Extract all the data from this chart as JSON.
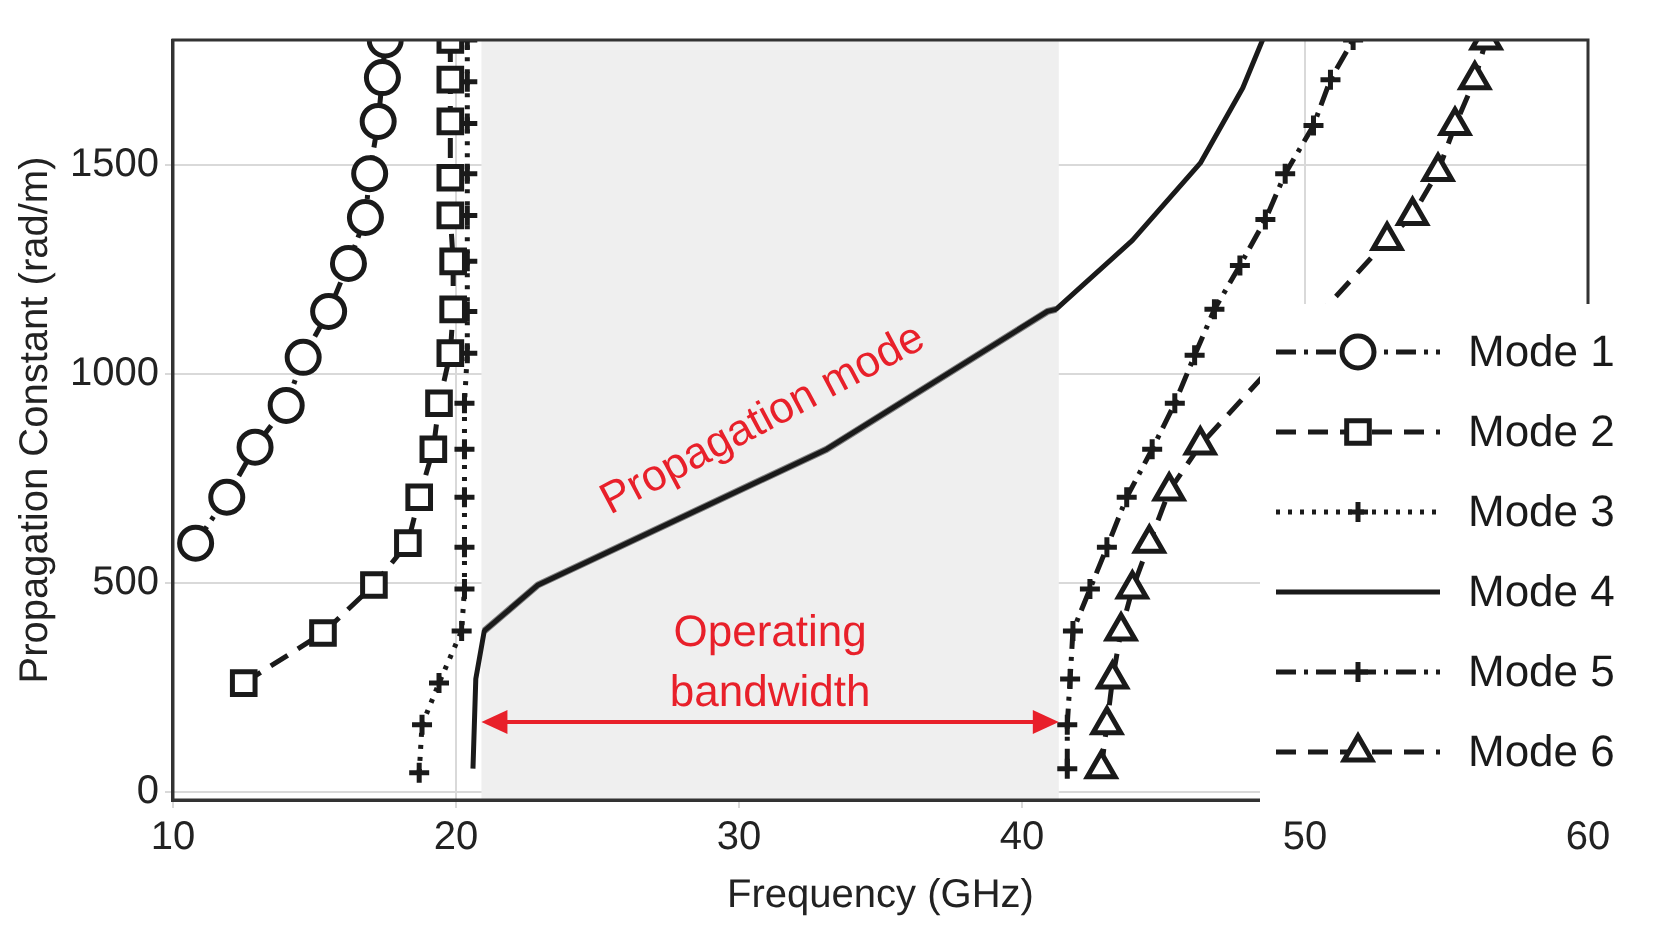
{
  "chart_data": {
    "type": "line",
    "xlabel": "Frequency (GHz)",
    "ylabel": "Propagation Constant (rad/m)",
    "xlim": [
      10,
      60
    ],
    "ylim": [
      -20,
      1800
    ],
    "xticks": [
      10,
      20,
      30,
      40,
      50,
      60
    ],
    "yticks": [
      0,
      500,
      1000,
      1500
    ],
    "grid": true,
    "legend": "right",
    "bands": [
      {
        "axis": "x",
        "from": 20.9,
        "to": 41.3,
        "label": "Operating bandwidth",
        "color": "#efefef"
      }
    ],
    "annotations": [
      "Propagation mode"
    ],
    "series": [
      {
        "name": "Mode 1",
        "color": "#1a1a1a",
        "marker": "circle",
        "line_style": "dashdot",
        "x": [
          10.8,
          11.9,
          12.9,
          14.0,
          14.6,
          15.5,
          16.2,
          16.8,
          16.95,
          17.25,
          17.4,
          17.5
        ],
        "values": [
          595,
          705,
          825,
          925,
          1040,
          1150,
          1265,
          1375,
          1480,
          1605,
          1710,
          1800
        ]
      },
      {
        "name": "Mode 2",
        "color": "#1a1a1a",
        "marker": "square",
        "line_style": "dashed",
        "x": [
          12.5,
          15.3,
          17.1,
          18.3,
          18.7,
          19.2,
          19.4,
          19.8,
          19.9,
          19.9,
          19.8,
          19.8,
          19.8,
          19.8,
          19.8
        ],
        "values": [
          260,
          380,
          495,
          595,
          705,
          820,
          930,
          1050,
          1155,
          1270,
          1380,
          1470,
          1605,
          1705,
          1800
        ]
      },
      {
        "name": "Mode 3",
        "color": "#1a1a1a",
        "marker": "cross",
        "line_style": "dotted",
        "x": [
          18.7,
          18.8,
          19.4,
          20.2,
          20.3,
          20.3,
          20.3,
          20.3,
          20.3,
          20.4,
          20.4,
          20.4,
          20.4,
          20.4,
          20.4,
          20.4,
          20.4
        ],
        "values": [
          45,
          160,
          260,
          385,
          485,
          585,
          705,
          820,
          930,
          1050,
          1150,
          1270,
          1380,
          1480,
          1600,
          1700,
          1800
        ]
      },
      {
        "name": "Mode 4",
        "color": "#1a1a1a",
        "marker": "none",
        "line_style": "solid",
        "x": [
          20.6,
          20.7,
          21.0,
          22.9,
          33.1,
          40.9,
          41.2,
          43.9,
          46.3,
          47.8,
          48.5
        ],
        "values": [
          55,
          270,
          385,
          495,
          820,
          1150,
          1155,
          1320,
          1505,
          1685,
          1800
        ]
      },
      {
        "color": "#808080",
        "marker": "none",
        "line_style": "solid",
        "x": [
          21.0,
          22.9,
          33.1,
          40.9,
          41.2
        ],
        "values": [
          385,
          495,
          820,
          1150,
          1155
        ]
      },
      {
        "name": "Mode 5",
        "color": "#1a1a1a",
        "marker": "cross",
        "line_style": "dashdot",
        "x": [
          41.6,
          41.6,
          41.7,
          41.8,
          42.4,
          43.0,
          43.7,
          44.6,
          45.4,
          46.1,
          46.8,
          47.7,
          48.6,
          49.3,
          50.3,
          50.9,
          51.7
        ],
        "values": [
          55,
          160,
          270,
          385,
          485,
          585,
          705,
          820,
          930,
          1045,
          1155,
          1260,
          1370,
          1480,
          1595,
          1705,
          1800
        ]
      },
      {
        "name": "Mode 6",
        "color": "#1a1a1a",
        "marker": "triangle",
        "line_style": "dashed",
        "x": [
          42.8,
          43.0,
          43.2,
          43.5,
          43.9,
          44.5,
          45.2,
          46.3,
          52.9,
          53.8,
          54.7,
          55.3,
          56.0,
          56.4
        ],
        "values": [
          55,
          160,
          270,
          385,
          485,
          595,
          720,
          830,
          1320,
          1380,
          1485,
          1595,
          1705,
          1800
        ]
      }
    ]
  }
}
